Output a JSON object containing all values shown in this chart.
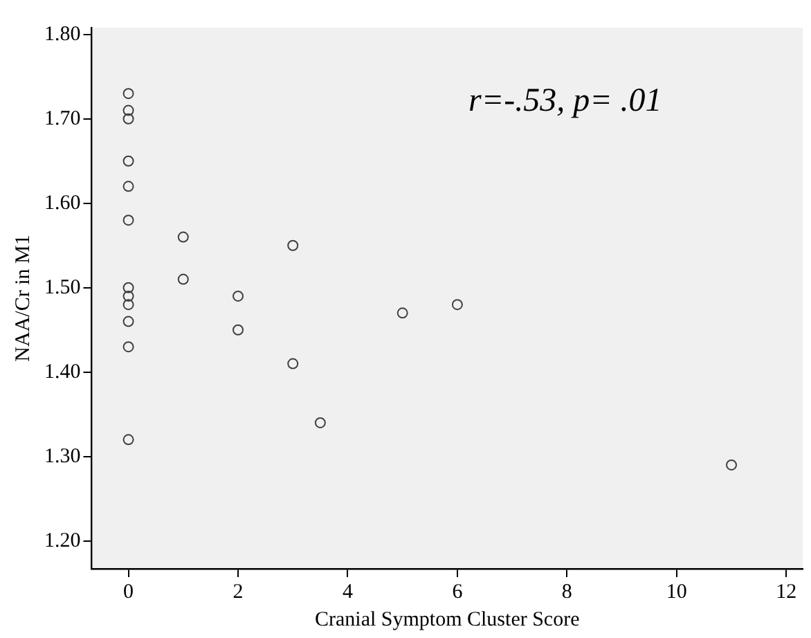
{
  "chart_data": {
    "type": "scatter",
    "xlabel": "Cranial Symptom Cluster Score",
    "ylabel": "NAA/Cr in M1",
    "annotations": [
      "r=-.53, p= .01"
    ],
    "x": [
      0,
      0,
      0,
      0,
      0,
      0,
      0,
      0,
      0,
      0,
      0,
      0,
      1,
      1,
      2,
      2,
      3,
      3,
      3.5,
      5,
      6,
      11
    ],
    "series": [
      {
        "color": "#404040",
        "values": [
          1.73,
          1.71,
          1.7,
          1.65,
          1.62,
          1.58,
          1.5,
          1.49,
          1.48,
          1.46,
          1.43,
          1.32,
          1.56,
          1.51,
          1.49,
          1.45,
          1.55,
          1.41,
          1.34,
          1.47,
          1.48,
          1.29
        ]
      }
    ],
    "xlim": [
      -0.67,
      12.3
    ],
    "xticks": [
      0,
      2,
      4,
      6,
      8,
      10,
      12
    ],
    "ylim": [
      1.167,
      1.808
    ],
    "yticks": [
      {
        "value": 1.2,
        "label": "1.20"
      },
      {
        "value": 1.3,
        "label": "1.30"
      },
      {
        "value": 1.4,
        "label": "1.40"
      },
      {
        "value": 1.5,
        "label": "1.50"
      },
      {
        "value": 1.6,
        "label": "1.60"
      },
      {
        "value": 1.7,
        "label": "1.70"
      },
      {
        "value": 1.8,
        "label": "1.80"
      }
    ],
    "marker": "circle",
    "grid": false,
    "legend": false
  }
}
